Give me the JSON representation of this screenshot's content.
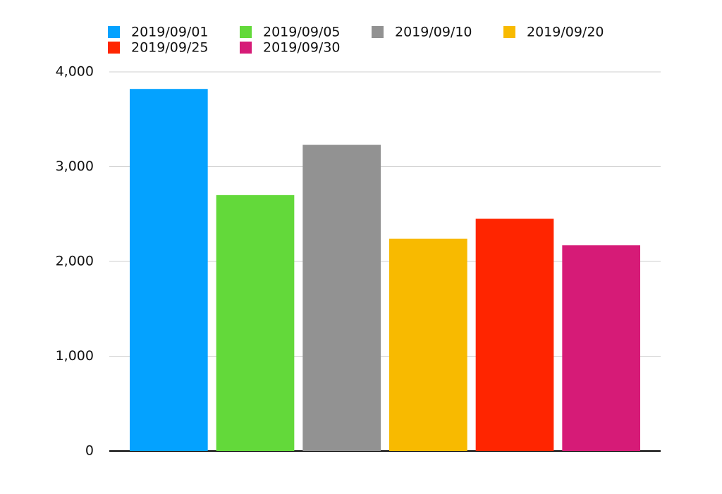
{
  "chart_data": {
    "type": "bar",
    "categories": [
      null
    ],
    "series": [
      {
        "name": "2019/09/01",
        "color": "#04a2ff",
        "values": [
          3820
        ]
      },
      {
        "name": "2019/09/05",
        "color": "#63d93a",
        "values": [
          2700
        ]
      },
      {
        "name": "2019/09/10",
        "color": "#929292",
        "values": [
          3230
        ]
      },
      {
        "name": "2019/09/20",
        "color": "#f8ba00",
        "values": [
          2240
        ]
      },
      {
        "name": "2019/09/25",
        "color": "#ff2500",
        "values": [
          2450
        ]
      },
      {
        "name": "2019/09/30",
        "color": "#d61b77",
        "values": [
          2170
        ]
      }
    ],
    "ylim": [
      0,
      4000
    ],
    "yticks": [
      0,
      {
        "value": 1000,
        "label": "1,000"
      },
      {
        "value": 2000,
        "label": "2,000"
      },
      {
        "value": 3000,
        "label": "3,000"
      },
      {
        "value": 4000,
        "label": "4,000"
      }
    ],
    "grid": true,
    "legend": "top"
  }
}
